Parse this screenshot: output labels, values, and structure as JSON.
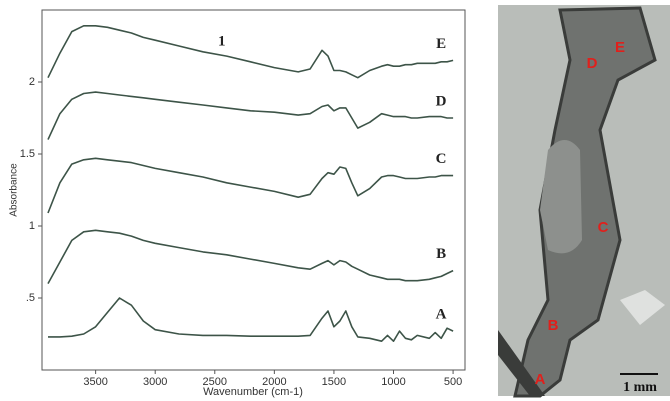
{
  "chart_data": {
    "type": "line",
    "xlabel": "Wavenumber (cm-1)",
    "ylabel": "Absorbance",
    "annotations": [
      "1"
    ],
    "xlim": [
      3950,
      400
    ],
    "ylim": [
      0,
      2.5
    ],
    "xticks": [
      3500,
      3000,
      2500,
      2000,
      1500,
      1000,
      500
    ],
    "yticks": [
      {
        "value": 0.5,
        "label": ".5"
      },
      1,
      1.5,
      2
    ],
    "x": [
      3900,
      3800,
      3700,
      3600,
      3500,
      3400,
      3300,
      3200,
      3100,
      3000,
      2800,
      2600,
      2400,
      2200,
      2000,
      1800,
      1700,
      1600,
      1550,
      1500,
      1450,
      1400,
      1350,
      1300,
      1200,
      1100,
      1050,
      1000,
      950,
      900,
      850,
      800,
      700,
      650,
      600,
      550,
      500
    ],
    "series": [
      {
        "name": "A",
        "color": "#3d5448",
        "values": [
          0.23,
          0.23,
          0.235,
          0.25,
          0.3,
          0.4,
          0.5,
          0.45,
          0.34,
          0.28,
          0.25,
          0.24,
          0.24,
          0.235,
          0.235,
          0.235,
          0.24,
          0.36,
          0.41,
          0.3,
          0.34,
          0.41,
          0.3,
          0.23,
          0.22,
          0.2,
          0.24,
          0.2,
          0.27,
          0.22,
          0.21,
          0.24,
          0.22,
          0.26,
          0.22,
          0.29,
          0.27
        ]
      },
      {
        "name": "B",
        "color": "#3d5448",
        "values": [
          0.6,
          0.75,
          0.9,
          0.96,
          0.97,
          0.96,
          0.95,
          0.93,
          0.9,
          0.88,
          0.85,
          0.82,
          0.8,
          0.77,
          0.74,
          0.71,
          0.7,
          0.74,
          0.76,
          0.73,
          0.76,
          0.75,
          0.72,
          0.7,
          0.66,
          0.64,
          0.63,
          0.63,
          0.63,
          0.62,
          0.62,
          0.62,
          0.63,
          0.64,
          0.65,
          0.67,
          0.69
        ]
      },
      {
        "name": "C",
        "color": "#3d5448",
        "values": [
          1.09,
          1.3,
          1.43,
          1.46,
          1.47,
          1.46,
          1.45,
          1.44,
          1.42,
          1.4,
          1.37,
          1.34,
          1.3,
          1.27,
          1.24,
          1.2,
          1.22,
          1.33,
          1.37,
          1.36,
          1.41,
          1.4,
          1.3,
          1.21,
          1.26,
          1.34,
          1.35,
          1.35,
          1.34,
          1.33,
          1.33,
          1.33,
          1.34,
          1.34,
          1.35,
          1.35,
          1.35
        ]
      },
      {
        "name": "D",
        "color": "#3d5448",
        "values": [
          1.6,
          1.78,
          1.88,
          1.92,
          1.93,
          1.92,
          1.91,
          1.9,
          1.89,
          1.88,
          1.86,
          1.84,
          1.82,
          1.8,
          1.79,
          1.77,
          1.78,
          1.83,
          1.84,
          1.8,
          1.82,
          1.82,
          1.75,
          1.68,
          1.72,
          1.78,
          1.77,
          1.76,
          1.76,
          1.76,
          1.75,
          1.75,
          1.76,
          1.76,
          1.76,
          1.75,
          1.75
        ]
      },
      {
        "name": "E",
        "color": "#3d5448",
        "values": [
          2.03,
          2.2,
          2.35,
          2.39,
          2.39,
          2.38,
          2.36,
          2.34,
          2.31,
          2.29,
          2.25,
          2.21,
          2.18,
          2.14,
          2.1,
          2.07,
          2.09,
          2.22,
          2.18,
          2.08,
          2.08,
          2.07,
          2.05,
          2.03,
          2.08,
          2.11,
          2.12,
          2.11,
          2.11,
          2.12,
          2.12,
          2.13,
          2.13,
          2.13,
          2.14,
          2.14,
          2.15
        ]
      }
    ]
  },
  "image": {
    "labels": [
      "D",
      "E",
      "C",
      "B",
      "A"
    ],
    "scale_bar": "1 mm"
  }
}
